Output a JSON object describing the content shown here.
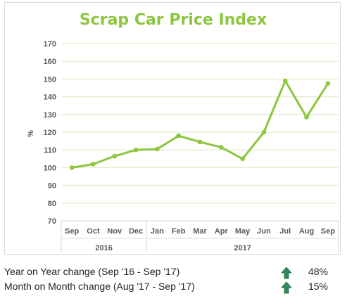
{
  "chart_data": {
    "type": "line",
    "title": "Scrap Car Price Index",
    "ylabel": "%",
    "ylim": [
      70,
      170
    ],
    "yticks": [
      70,
      80,
      90,
      100,
      110,
      120,
      130,
      140,
      150,
      160,
      170
    ],
    "categories": [
      "Sep",
      "Oct",
      "Nov",
      "Dec",
      "Jan",
      "Feb",
      "Mar",
      "Apr",
      "May",
      "Jun",
      "Jul",
      "Aug",
      "Sep"
    ],
    "year_groups": [
      {
        "label": "2016",
        "count": 4
      },
      {
        "label": "2017",
        "count": 9
      }
    ],
    "series": [
      {
        "values": [
          100,
          102,
          106.5,
          110,
          110.5,
          118,
          114.5,
          111.5,
          105,
          120,
          149,
          128.5,
          147.5
        ]
      }
    ],
    "grid": true,
    "legend": "none",
    "line_color": "#8dc63f",
    "title_color": "#8dc63f"
  },
  "summary": [
    {
      "label": "Year on Year change (Sep '16 - Sep '17)",
      "icon": "up-arrow-icon",
      "value": "48%",
      "color": "#2e8b57"
    },
    {
      "label": "Month on Month change (Aug '17 - Sep '17)",
      "icon": "up-arrow-icon",
      "value": "15%",
      "color": "#2e8b57"
    }
  ]
}
